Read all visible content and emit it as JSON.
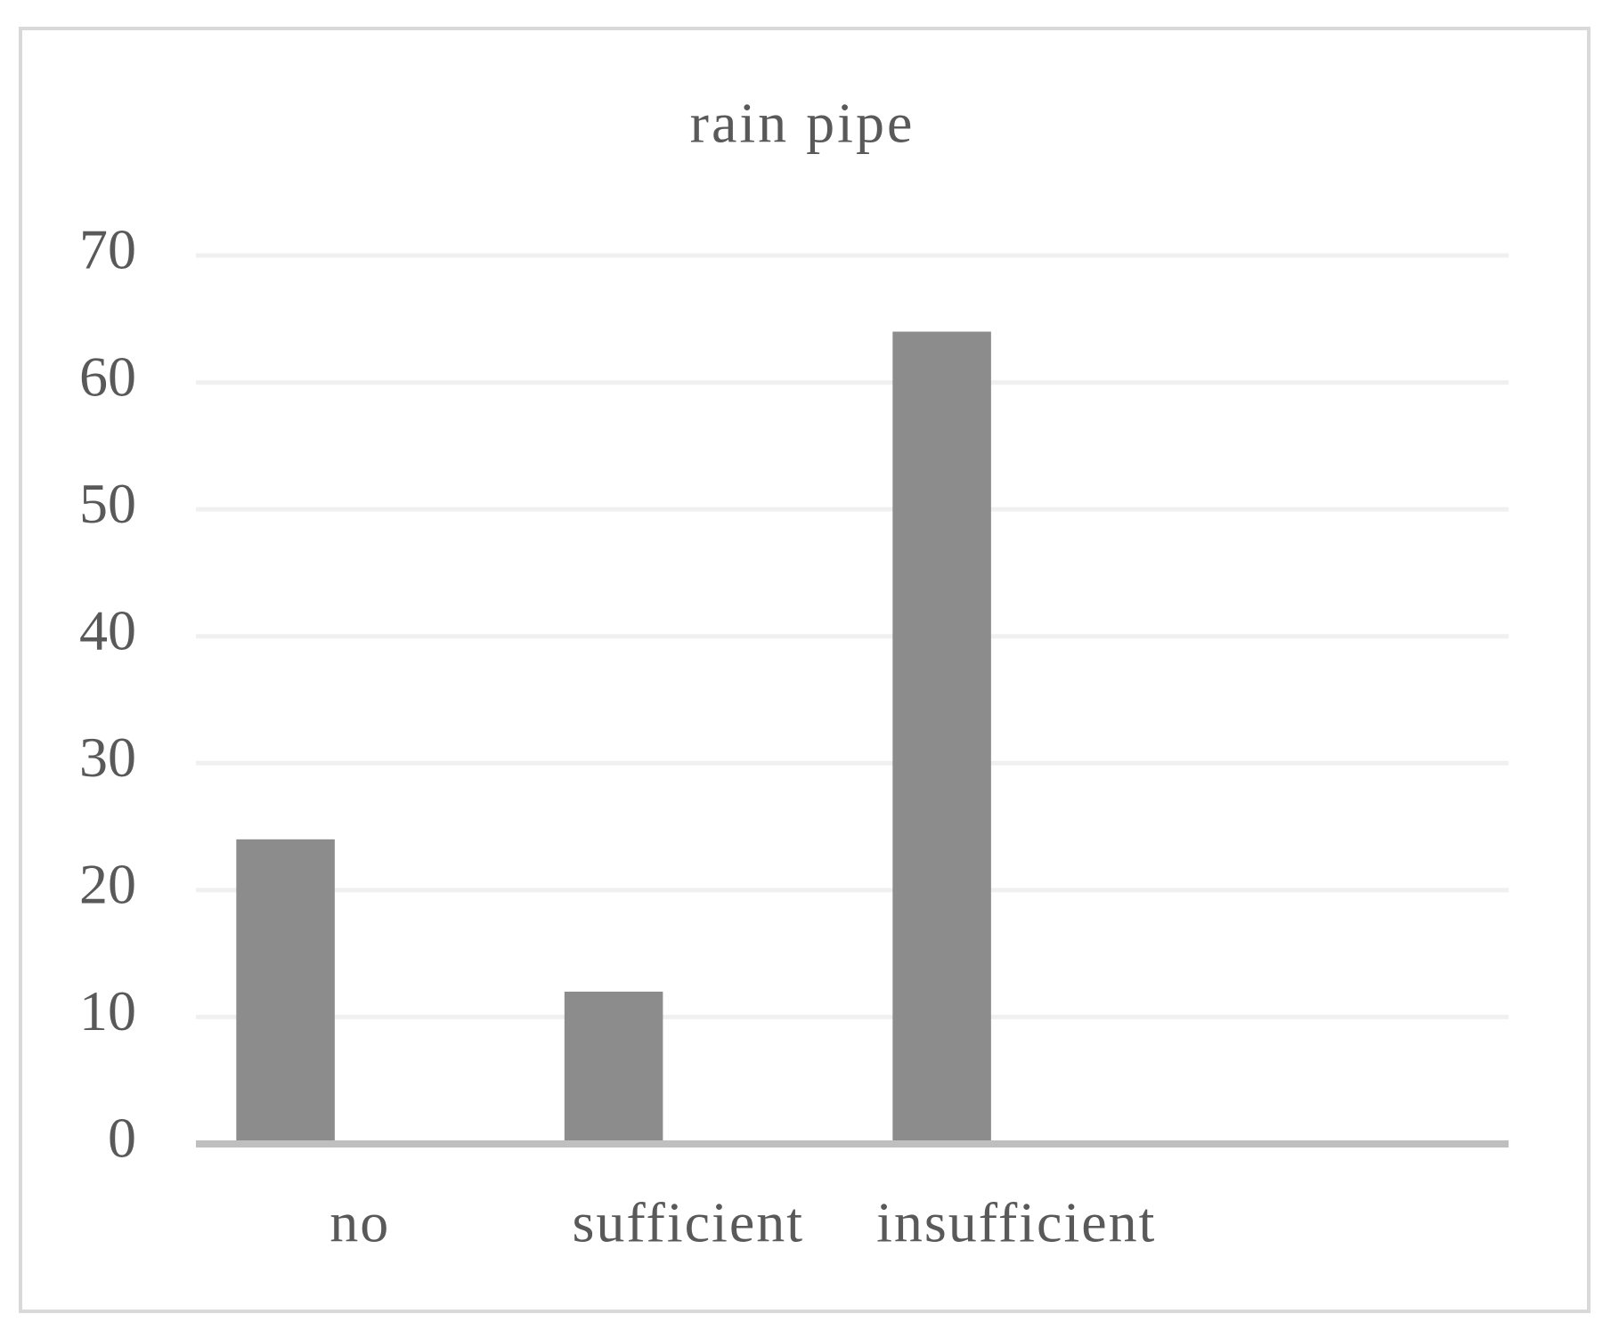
{
  "chart_data": {
    "type": "bar",
    "title": "rain pipe",
    "categories": [
      "no",
      "sufficient",
      "insufficient",
      null
    ],
    "values": [
      24,
      12,
      64,
      null
    ],
    "color": "#8c8c8c",
    "ylim": [
      0,
      70
    ],
    "yticks": [
      0,
      10,
      20,
      30,
      40,
      50,
      60,
      70
    ],
    "grid": true
  }
}
